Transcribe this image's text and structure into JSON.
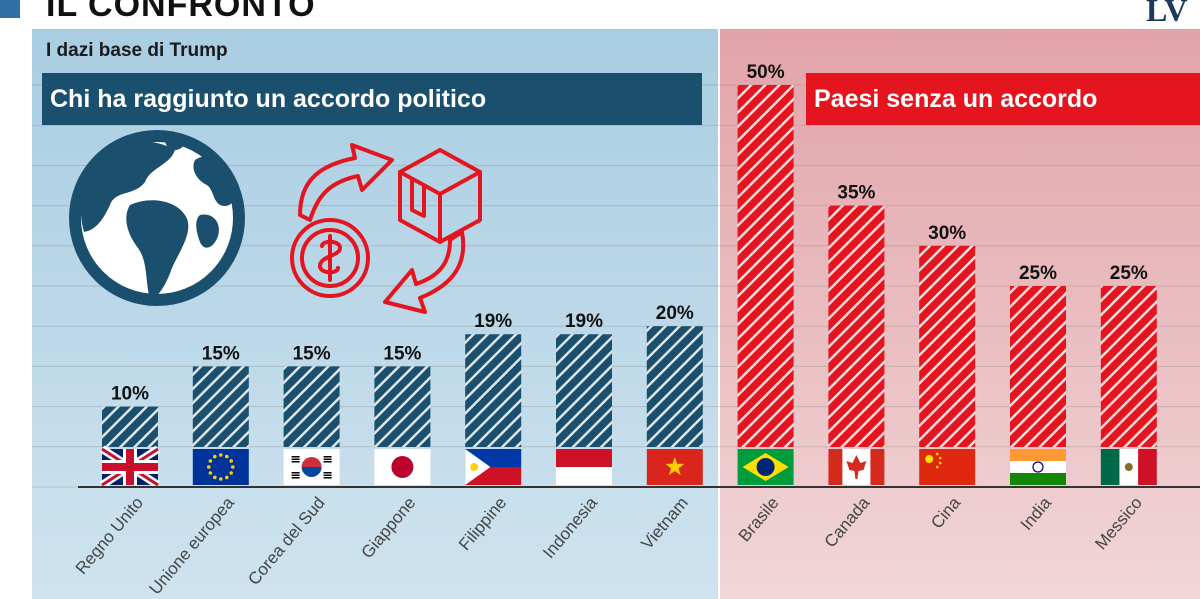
{
  "header": {
    "title": "IL CONFRONTO",
    "logo_text": "LV"
  },
  "subtitle": "I dazi base di Trump",
  "banners": {
    "left": "Chi ha raggiunto un accordo politico",
    "right": "Paesi senza un accordo"
  },
  "colors": {
    "accordo": "#1b4f6e",
    "senza_accordo": "#e4151f",
    "panel_left": "#a9cde2",
    "panel_right": "#e2a3a8"
  },
  "icons": [
    "globe-icon",
    "trade-exchange-icon"
  ],
  "chart_data": {
    "type": "bar",
    "title": "I dazi base di Trump",
    "xlabel": "",
    "ylabel": "",
    "ylim": [
      0,
      50
    ],
    "grid": true,
    "categories": [
      "Regno Unito",
      "Unione europea",
      "Corea del Sud",
      "Giappone",
      "Filippine",
      "Indonesia",
      "Vietnam",
      "Brasile",
      "Canada",
      "Cina",
      "India",
      "Messico"
    ],
    "values": [
      10,
      15,
      15,
      15,
      19,
      19,
      20,
      50,
      35,
      30,
      25,
      25
    ],
    "value_labels": [
      "10%",
      "15%",
      "15%",
      "15%",
      "19%",
      "19%",
      "20%",
      "50%",
      "35%",
      "30%",
      "25%",
      "25%"
    ],
    "groups": [
      {
        "name": "Chi ha raggiunto un accordo politico",
        "color": "#1b4f6e",
        "categories": [
          "Regno Unito",
          "Unione europea",
          "Corea del Sud",
          "Giappone",
          "Filippine",
          "Indonesia",
          "Vietnam"
        ]
      },
      {
        "name": "Paesi senza un accordo",
        "color": "#e4151f",
        "categories": [
          "Brasile",
          "Canada",
          "Cina",
          "India",
          "Messico"
        ]
      }
    ],
    "flags": [
      "uk-flag",
      "eu-flag",
      "south-korea-flag",
      "japan-flag",
      "philippines-flag",
      "indonesia-flag",
      "vietnam-flag",
      "brazil-flag",
      "canada-flag",
      "china-flag",
      "india-flag",
      "mexico-flag"
    ]
  }
}
